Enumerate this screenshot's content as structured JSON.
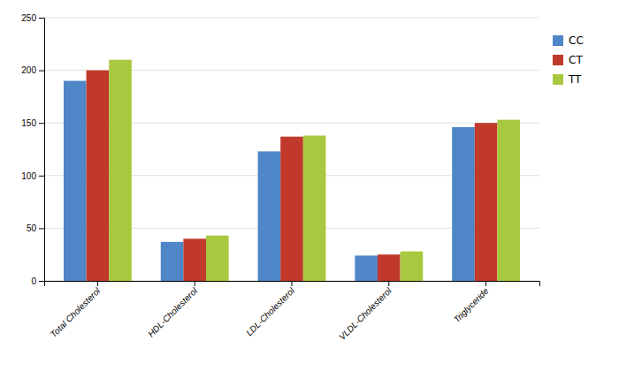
{
  "chart_data": {
    "type": "bar",
    "categories": [
      "Total Cholesterol",
      "HDL-Cholesterol",
      "LDL-Cholesterol",
      "VLDL-Cholesterol",
      "Triglyceride"
    ],
    "series": [
      {
        "name": "CC",
        "color": "#4e86c8",
        "values": [
          190,
          37,
          123,
          24,
          146
        ]
      },
      {
        "name": "CT",
        "color": "#c0392b",
        "values": [
          200,
          40,
          137,
          25,
          150
        ]
      },
      {
        "name": "TT",
        "color": "#a8c840",
        "values": [
          210,
          43,
          138,
          28,
          153
        ]
      }
    ],
    "ylim": [
      0,
      250
    ],
    "yticks": [
      0,
      50,
      100,
      150,
      200,
      250
    ],
    "grid": true,
    "legend": "right"
  }
}
